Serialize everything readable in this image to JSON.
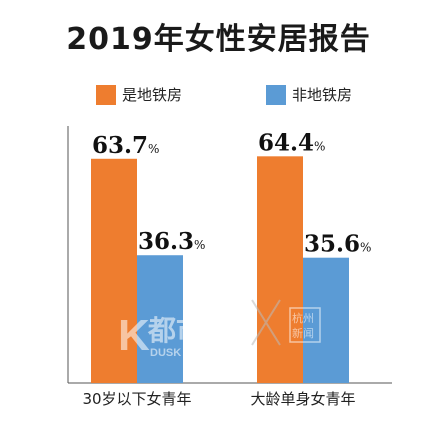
{
  "chart_data": {
    "type": "bar",
    "title": "2019年女性安居报告",
    "categories": [
      "30岁以下女青年",
      "大龄单身女青年"
    ],
    "series": [
      {
        "name": "是地铁房",
        "values": [
          63.7,
          64.4
        ],
        "color": "#ee7d2f"
      },
      {
        "name": "非地铁房",
        "values": [
          36.3,
          35.6
        ],
        "color": "#5b9bd5"
      }
    ],
    "value_suffix": "%",
    "ylim": [
      0,
      100
    ],
    "legend_position": "top",
    "grid": false
  },
  "watermark": {
    "brand_text": "都市",
    "brand_sub": "DUSK",
    "partner_text_1": "杭州",
    "partner_text_2": "新闻"
  }
}
